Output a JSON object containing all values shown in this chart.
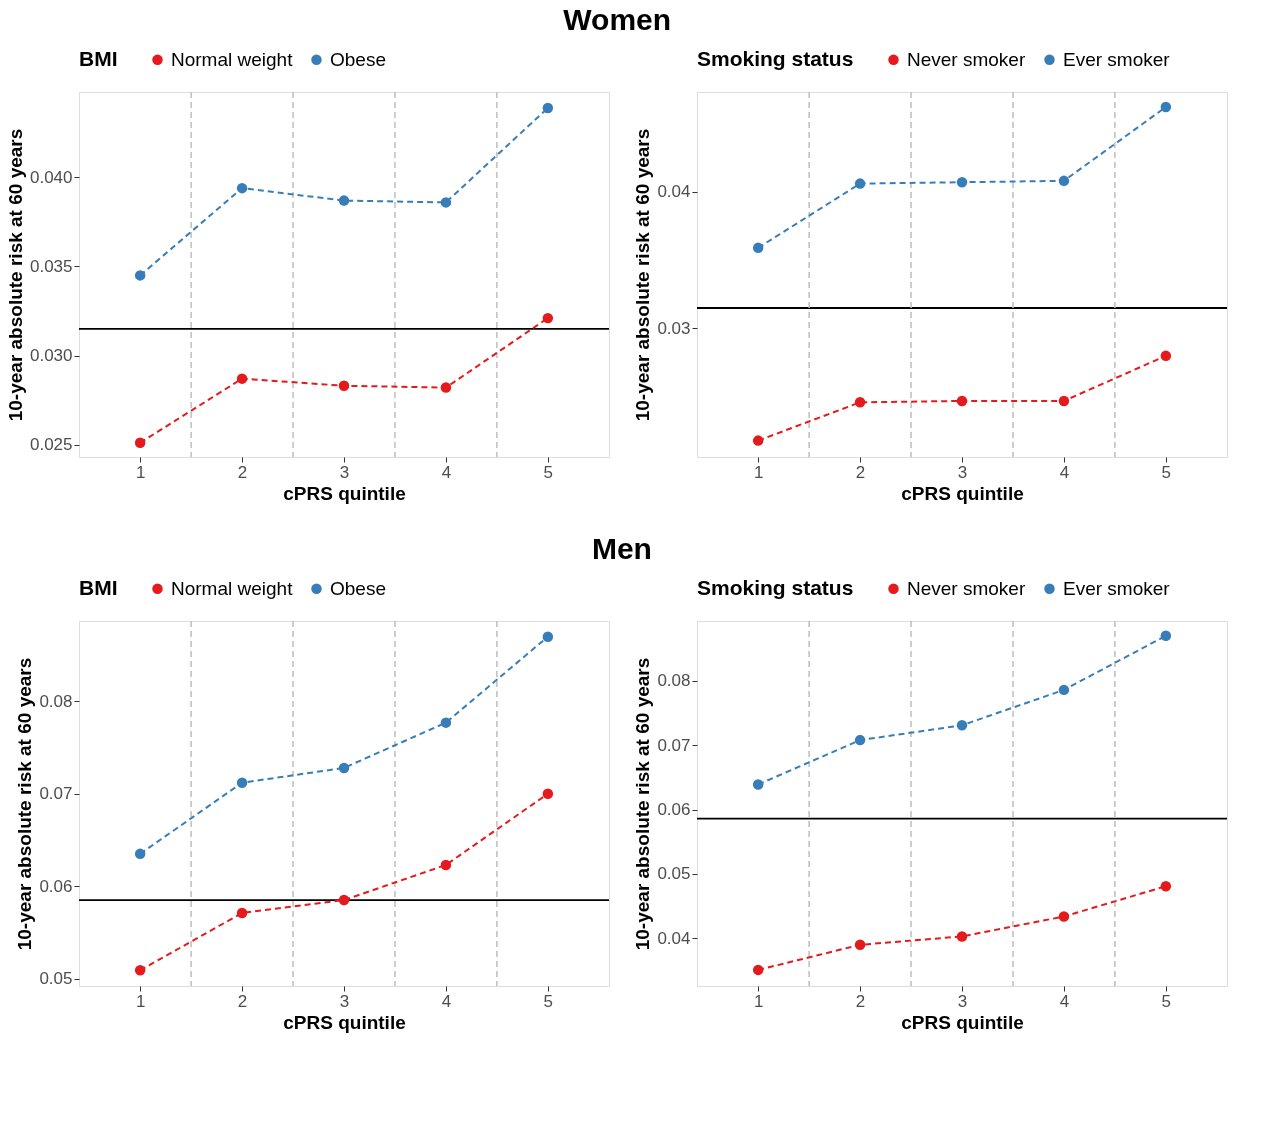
{
  "chart_data": [
    {
      "type": "line",
      "title": "Women",
      "xlabel": "cPRS quintile",
      "ylabel": "10-year absolute risk at 60 years",
      "legend_title": "BMI",
      "legend": "top",
      "marker": "circle",
      "line_style": "dashed",
      "grid": false,
      "x": [
        1,
        2,
        3,
        4,
        5
      ],
      "xlim": [
        0.4,
        5.6
      ],
      "xticks": [
        1,
        2,
        3,
        4,
        5
      ],
      "ylim": [
        0.0243,
        0.0448
      ],
      "yticks": [
        0.025,
        {
          "value": 0.03,
          "label": "0.030"
        },
        0.035,
        {
          "value": 0.04,
          "label": "0.040"
        }
      ],
      "series": [
        {
          "name": "Normal weight",
          "color": "#e41a1c",
          "values": [
            0.0251,
            0.0287,
            0.0283,
            0.0282,
            0.0321
          ]
        },
        {
          "name": "Obese",
          "color": "#377eb8",
          "values": [
            0.0345,
            0.0394,
            0.0387,
            0.0386,
            0.0439
          ]
        }
      ],
      "ref_lines": [
        {
          "axis": "y",
          "value": 0.0315,
          "color": "#000000",
          "line_style": "solid"
        },
        {
          "axis": "x",
          "value": 1.5,
          "color": "#bebebe",
          "line_style": "dashed"
        },
        {
          "axis": "x",
          "value": 2.5,
          "color": "#bebebe",
          "line_style": "dashed"
        },
        {
          "axis": "x",
          "value": 3.5,
          "color": "#bebebe",
          "line_style": "dashed"
        },
        {
          "axis": "x",
          "value": 4.5,
          "color": "#bebebe",
          "line_style": "dashed"
        }
      ]
    },
    {
      "type": "line",
      "xlabel": "cPRS quintile",
      "ylabel": "10-year absolute risk at 60 years",
      "legend_title": "Smoking status",
      "legend": "top",
      "marker": "circle",
      "line_style": "dashed",
      "grid": false,
      "x": [
        1,
        2,
        3,
        4,
        5
      ],
      "xlim": [
        0.4,
        5.6
      ],
      "xticks": [
        1,
        2,
        3,
        4,
        5
      ],
      "ylim": [
        0.0206,
        0.0473
      ],
      "yticks": [
        0.03,
        0.04
      ],
      "series": [
        {
          "name": "Never smoker",
          "color": "#e41a1c",
          "values": [
            0.0218,
            0.0246,
            0.0247,
            0.0247,
            0.028
          ]
        },
        {
          "name": "Ever smoker",
          "color": "#377eb8",
          "values": [
            0.0359,
            0.0406,
            0.0407,
            0.0408,
            0.0462
          ]
        }
      ],
      "ref_lines": [
        {
          "axis": "y",
          "value": 0.0315,
          "color": "#000000",
          "line_style": "solid"
        },
        {
          "axis": "x",
          "value": 1.5,
          "color": "#bebebe",
          "line_style": "dashed"
        },
        {
          "axis": "x",
          "value": 2.5,
          "color": "#bebebe",
          "line_style": "dashed"
        },
        {
          "axis": "x",
          "value": 3.5,
          "color": "#bebebe",
          "line_style": "dashed"
        },
        {
          "axis": "x",
          "value": 4.5,
          "color": "#bebebe",
          "line_style": "dashed"
        }
      ]
    },
    {
      "type": "line",
      "title": "Men",
      "xlabel": "cPRS quintile",
      "ylabel": "10-year absolute risk at 60 years",
      "legend_title": "BMI",
      "legend": "top",
      "marker": "circle",
      "line_style": "dashed",
      "grid": false,
      "x": [
        1,
        2,
        3,
        4,
        5
      ],
      "xlim": [
        0.4,
        5.6
      ],
      "xticks": [
        1,
        2,
        3,
        4,
        5
      ],
      "ylim": [
        0.0492,
        0.0887
      ],
      "yticks": [
        0.05,
        0.06,
        0.07,
        0.08
      ],
      "series": [
        {
          "name": "Normal weight",
          "color": "#e41a1c",
          "values": [
            0.0509,
            0.0571,
            0.0585,
            0.0623,
            0.07
          ]
        },
        {
          "name": "Obese",
          "color": "#377eb8",
          "values": [
            0.0635,
            0.0712,
            0.0728,
            0.0777,
            0.087
          ]
        }
      ],
      "ref_lines": [
        {
          "axis": "y",
          "value": 0.0585,
          "color": "#000000",
          "line_style": "solid"
        },
        {
          "axis": "x",
          "value": 1.5,
          "color": "#bebebe",
          "line_style": "dashed"
        },
        {
          "axis": "x",
          "value": 2.5,
          "color": "#bebebe",
          "line_style": "dashed"
        },
        {
          "axis": "x",
          "value": 3.5,
          "color": "#bebebe",
          "line_style": "dashed"
        },
        {
          "axis": "x",
          "value": 4.5,
          "color": "#bebebe",
          "line_style": "dashed"
        }
      ]
    },
    {
      "type": "line",
      "xlabel": "cPRS quintile",
      "ylabel": "10-year absolute risk at 60 years",
      "legend_title": "Smoking status",
      "legend": "top",
      "marker": "circle",
      "line_style": "dashed",
      "grid": false,
      "x": [
        1,
        2,
        3,
        4,
        5
      ],
      "xlim": [
        0.4,
        5.6
      ],
      "xticks": [
        1,
        2,
        3,
        4,
        5
      ],
      "ylim": [
        0.0326,
        0.0893
      ],
      "yticks": [
        0.04,
        0.05,
        0.06,
        0.07,
        0.08
      ],
      "series": [
        {
          "name": "Never smoker",
          "color": "#e41a1c",
          "values": [
            0.0351,
            0.039,
            0.0403,
            0.0434,
            0.0481
          ]
        },
        {
          "name": "Ever smoker",
          "color": "#377eb8",
          "values": [
            0.0639,
            0.0708,
            0.0731,
            0.0786,
            0.087
          ]
        }
      ],
      "ref_lines": [
        {
          "axis": "y",
          "value": 0.0586,
          "color": "#000000",
          "line_style": "solid"
        },
        {
          "axis": "x",
          "value": 1.5,
          "color": "#bebebe",
          "line_style": "dashed"
        },
        {
          "axis": "x",
          "value": 2.5,
          "color": "#bebebe",
          "line_style": "dashed"
        },
        {
          "axis": "x",
          "value": 3.5,
          "color": "#bebebe",
          "line_style": "dashed"
        },
        {
          "axis": "x",
          "value": 4.5,
          "color": "#bebebe",
          "line_style": "dashed"
        }
      ]
    }
  ]
}
